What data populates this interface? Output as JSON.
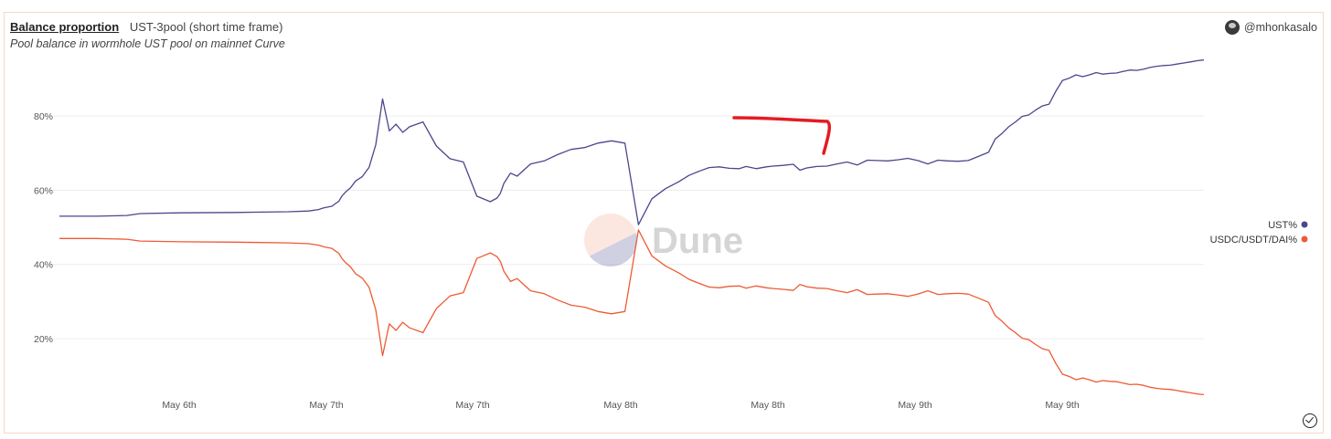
{
  "header": {
    "title": "Balance proportion",
    "subtitle": "UST-3pool (short time frame)",
    "description": "Pool balance in wormhole UST pool on mainnet Curve",
    "author": "@mhonkasalo"
  },
  "watermark": {
    "text": "Dune"
  },
  "colors": {
    "ust": "#4a478c",
    "usdc": "#ee5a35",
    "grid": "#ececec",
    "annotation": "#e31b23"
  },
  "chart_data": {
    "type": "line",
    "title": "Balance proportion",
    "xlabel": "",
    "ylabel": "",
    "x_ticks": [
      "May 6th",
      "May 7th",
      "May 7th",
      "May 8th",
      "May 8th",
      "May 9th",
      "May 9th"
    ],
    "y_ticks": [
      "20%",
      "40%",
      "60%",
      "80%"
    ],
    "ylim": [
      5,
      97
    ],
    "grid": true,
    "legend_position": "right",
    "x": [
      0,
      0.55,
      1.0,
      1.2,
      1.8,
      2.6,
      3.0,
      3.4,
      3.7,
      3.85,
      3.92,
      4.05,
      4.1,
      4.15,
      4.2,
      4.25,
      4.32,
      4.4,
      4.5,
      4.6,
      4.7,
      4.8,
      4.9,
      5.0,
      5.1,
      5.2,
      5.4,
      5.6,
      5.8,
      6.0,
      6.2,
      6.4,
      6.5,
      6.55,
      6.6,
      6.7,
      6.8,
      6.9,
      7.0,
      7.2,
      7.4,
      7.6,
      7.8,
      8.0,
      8.2,
      8.4,
      8.6,
      8.8,
      9.0,
      9.2,
      9.35,
      9.5,
      9.65,
      9.8,
      9.95,
      10.1,
      10.2,
      10.35,
      10.5,
      10.6,
      10.75,
      10.9,
      11.0,
      11.1,
      11.25,
      11.4,
      11.55,
      11.7,
      11.85,
      12.0,
      12.15,
      12.3,
      12.45,
      12.6,
      12.75,
      12.9,
      13.05,
      13.2,
      13.35,
      13.5,
      13.65,
      13.8,
      13.9,
      14.0,
      14.1,
      14.2,
      14.3,
      14.4,
      14.5,
      14.6,
      14.7,
      14.8,
      14.9,
      15.0,
      15.1,
      15.2,
      15.3,
      15.4,
      15.5,
      15.6,
      15.7,
      15.8,
      15.9,
      16.0,
      16.1,
      16.2,
      16.3,
      16.4,
      16.5,
      16.6,
      16.7,
      16.8,
      16.9,
      17.0
    ],
    "series": [
      {
        "name": "UST%",
        "values": [
          53.0,
          53.0,
          53.2,
          53.7,
          53.9,
          54.0,
          54.1,
          54.2,
          54.4,
          54.8,
          55.2,
          55.7,
          56.4,
          57.0,
          58.5,
          59.5,
          60.6,
          62.5,
          63.7,
          66.2,
          72.3,
          84.6,
          76.0,
          77.8,
          75.6,
          77.1,
          78.4,
          71.9,
          68.5,
          67.6,
          58.4,
          56.9,
          57.9,
          59.2,
          61.8,
          64.6,
          63.8,
          65.5,
          67.1,
          67.9,
          69.6,
          71.0,
          71.5,
          72.7,
          73.3,
          72.7,
          50.7,
          57.7,
          60.4,
          62.3,
          64.0,
          65.1,
          66.1,
          66.3,
          65.9,
          65.8,
          66.4,
          65.8,
          66.3,
          66.5,
          66.7,
          67.0,
          65.4,
          66.0,
          66.4,
          66.5,
          67.1,
          67.6,
          66.8,
          68.1,
          68.0,
          67.9,
          68.2,
          68.6,
          68.0,
          67.1,
          68.1,
          67.9,
          67.8,
          68.0,
          69.1,
          70.2,
          73.8,
          75.3,
          77.1,
          78.4,
          79.9,
          80.3,
          81.6,
          82.7,
          83.2,
          86.7,
          89.6,
          90.2,
          91.1,
          90.6,
          91.1,
          91.7,
          91.3,
          91.5,
          91.6,
          92.0,
          92.4,
          92.3,
          92.6,
          93.1,
          93.4,
          93.6,
          93.7,
          94.0,
          94.3,
          94.6,
          94.9,
          95.1
        ]
      },
      {
        "name": "USDC/USDT/DAI%",
        "values": [
          47.0,
          47.0,
          46.8,
          46.3,
          46.1,
          46.0,
          45.9,
          45.8,
          45.6,
          45.2,
          44.8,
          44.3,
          43.6,
          43.0,
          41.5,
          40.5,
          39.4,
          37.5,
          36.3,
          33.8,
          27.7,
          15.4,
          24.0,
          22.2,
          24.4,
          22.9,
          21.6,
          28.1,
          31.5,
          32.4,
          41.6,
          43.1,
          42.1,
          40.8,
          38.2,
          35.4,
          36.2,
          34.5,
          32.9,
          32.1,
          30.4,
          29.0,
          28.5,
          27.3,
          26.7,
          27.3,
          49.3,
          42.3,
          39.6,
          37.7,
          36.0,
          34.9,
          33.9,
          33.7,
          34.1,
          34.2,
          33.6,
          34.2,
          33.7,
          33.5,
          33.3,
          33.0,
          34.6,
          34.0,
          33.6,
          33.5,
          32.9,
          32.4,
          33.2,
          31.9,
          32.0,
          32.1,
          31.8,
          31.4,
          32.0,
          32.9,
          31.9,
          32.1,
          32.2,
          32.0,
          30.9,
          29.8,
          26.2,
          24.7,
          22.9,
          21.6,
          20.1,
          19.7,
          18.4,
          17.3,
          16.8,
          13.3,
          10.4,
          9.8,
          8.9,
          9.4,
          8.9,
          8.3,
          8.7,
          8.5,
          8.4,
          8.0,
          7.6,
          7.7,
          7.4,
          6.9,
          6.6,
          6.4,
          6.3,
          6.0,
          5.7,
          5.4,
          5.1,
          4.9
        ]
      }
    ]
  }
}
